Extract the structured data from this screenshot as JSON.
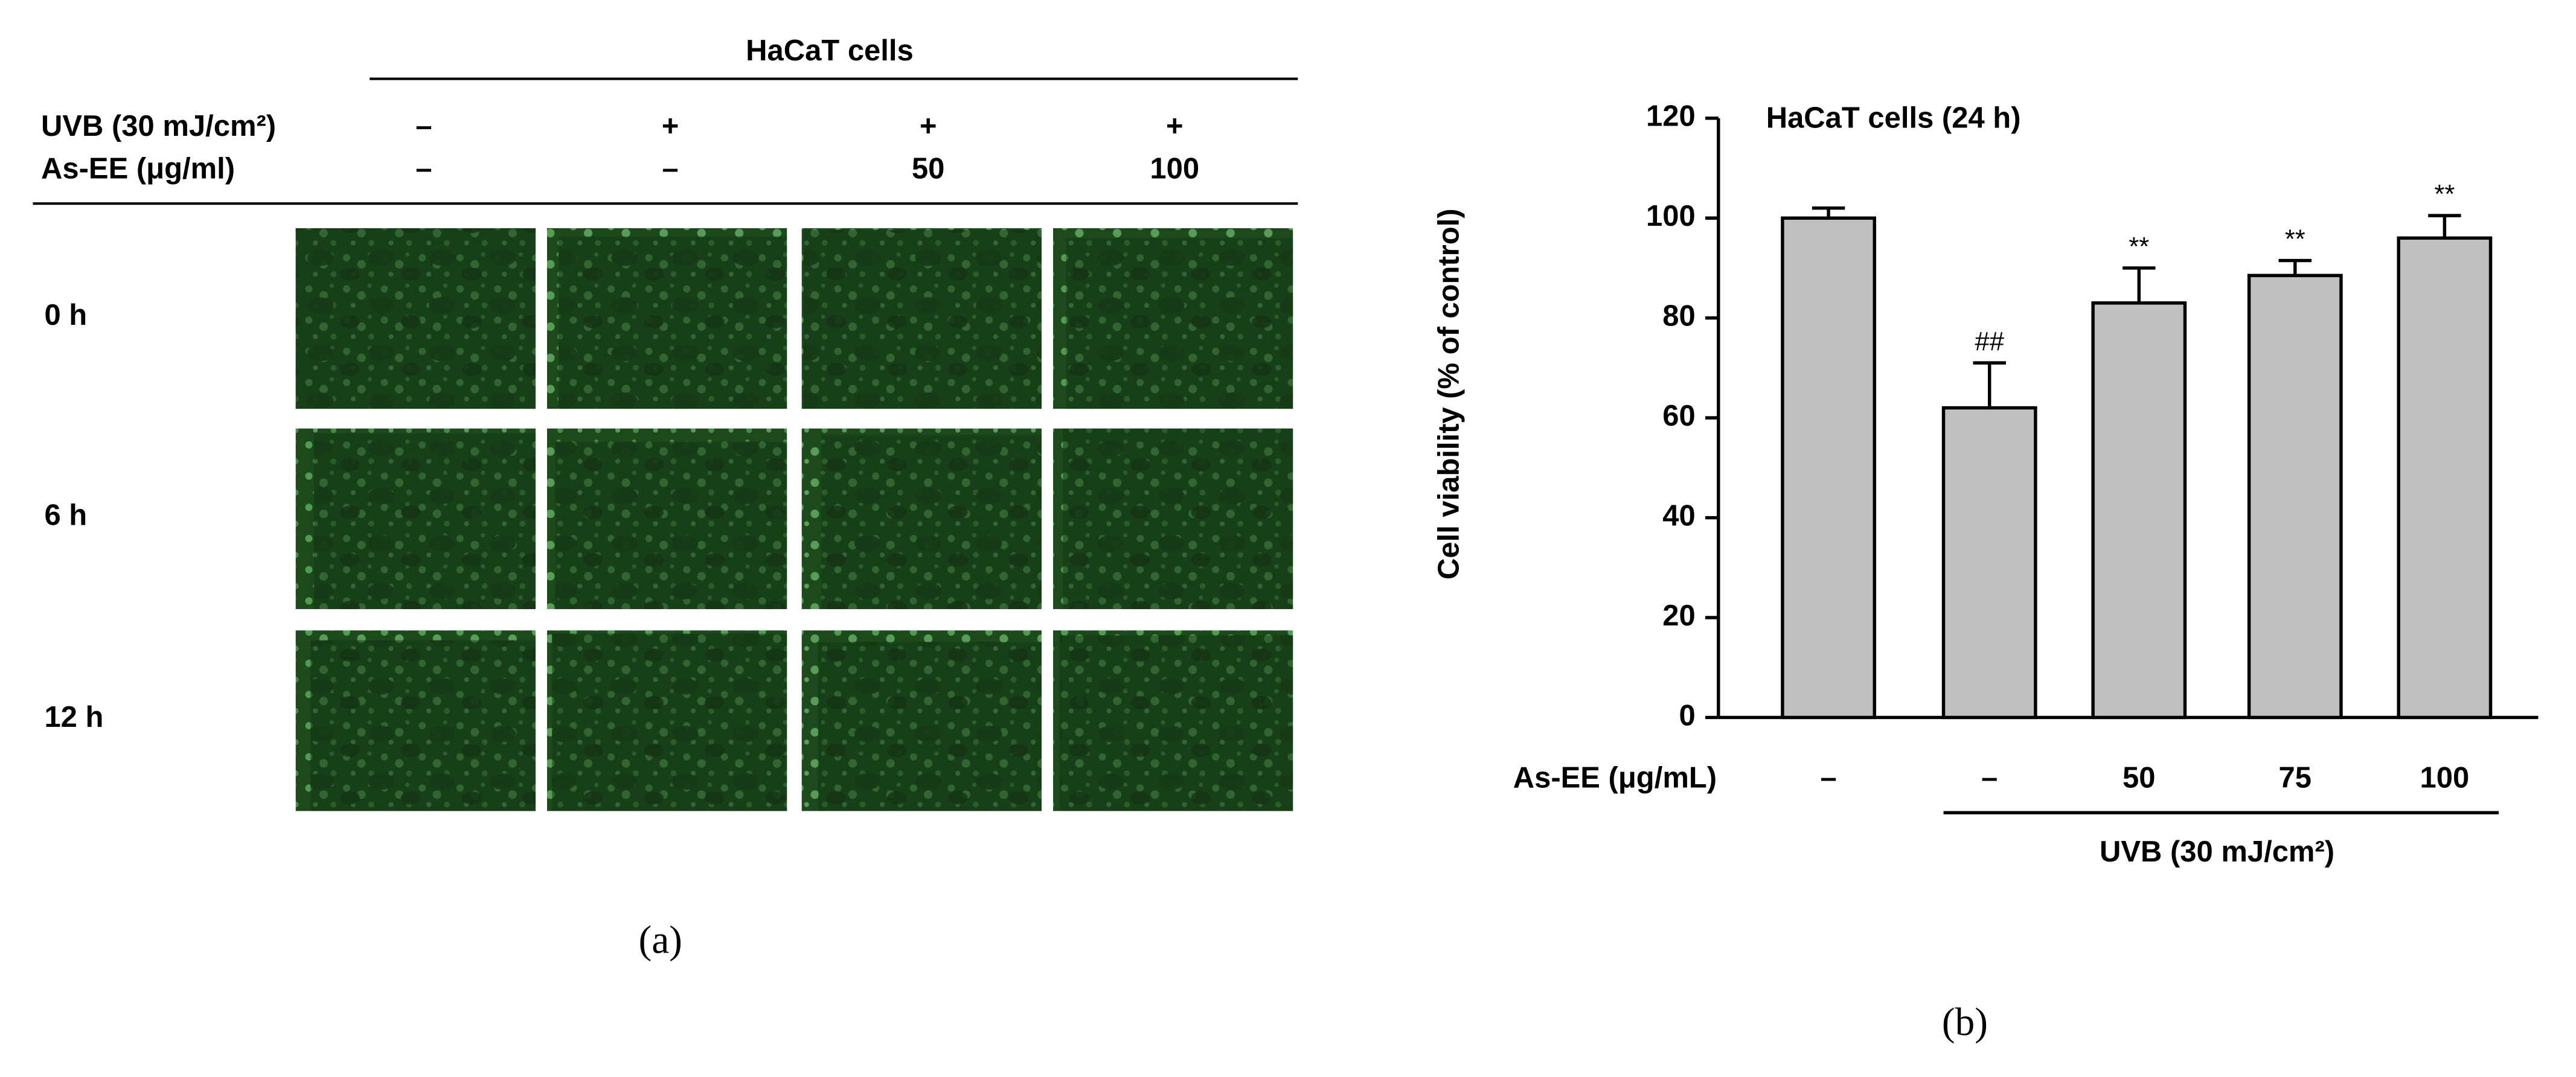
{
  "panel_a": {
    "title": "HaCaT cells",
    "conditions": [
      {
        "label": "UVB (30 mJ/cm²)",
        "values": [
          "–",
          "+",
          "+",
          "+"
        ]
      },
      {
        "label": "As-EE (μg/ml)",
        "values": [
          "–",
          "–",
          "50",
          "100"
        ]
      }
    ],
    "times": [
      "0 h",
      "6 h",
      "12 h"
    ],
    "panel_label": "(a)"
  },
  "chart_data": {
    "type": "bar",
    "title": "HaCaT cells (24 h)",
    "y_label": "Cell viability (% of control)",
    "x_label": "As-EE (μg/mL)",
    "group_label": "UVB (30 mJ/cm²)",
    "categories": [
      "–",
      "–",
      "50",
      "75",
      "100"
    ],
    "values": [
      100,
      62,
      83,
      88.5,
      96
    ],
    "errors": [
      2,
      9,
      7,
      3,
      4.5
    ],
    "annotations": [
      null,
      "##",
      "**",
      "**",
      "**"
    ],
    "color": "#c0c0c0",
    "ylim": [
      0,
      120
    ],
    "yticks": [
      0,
      20,
      40,
      60,
      80,
      100,
      120
    ],
    "grid": false,
    "panel_label": "(b)"
  }
}
